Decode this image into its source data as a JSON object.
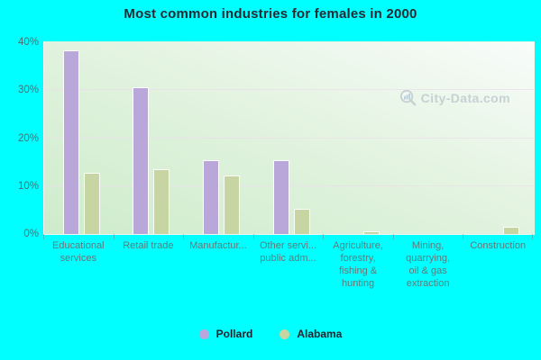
{
  "title": "Most common industries for females in 2000",
  "watermark": {
    "text": "City-Data.com",
    "icon": "magnifier-barchart-icon"
  },
  "colors": {
    "background": "#00ffff",
    "pollard": "#b9a7da",
    "alabama": "#c6d5a2",
    "watermark_text": "#b5c2c9"
  },
  "chart_data": {
    "type": "bar",
    "title": "Most common industries for females in 2000",
    "categories": [
      "Educational\nservices",
      "Retail trade",
      "Manufactur...",
      "Other servi...\npublic adm...",
      "Agriculture,\nforestry,\nfishing &\nhunting",
      "Mining,\nquarrying,\noil & gas\nextraction",
      "Construction"
    ],
    "series": [
      {
        "name": "Pollard",
        "color": "#b9a7da",
        "values": [
          38.4,
          30.7,
          15.4,
          15.4,
          0,
          0,
          0
        ]
      },
      {
        "name": "Alabama",
        "color": "#c6d5a2",
        "values": [
          12.8,
          13.6,
          12.3,
          5.3,
          0.6,
          0,
          1.5
        ]
      }
    ],
    "xlabel": "",
    "ylabel": "",
    "ylim": [
      0,
      40
    ],
    "yticks": [
      0,
      10,
      20,
      30,
      40
    ],
    "ytick_labels": [
      "0%",
      "10%",
      "20%",
      "30%",
      "40%"
    ],
    "grid": true,
    "legend_position": "bottom"
  }
}
